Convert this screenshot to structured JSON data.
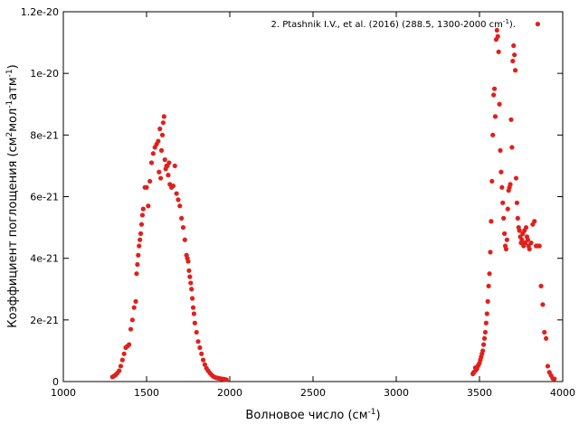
{
  "chart_data": {
    "type": "scatter",
    "xlabel": "Волновое число (см",
    "xlabel_sup": "-1",
    "xlabel_tail": ")",
    "ylabel_parts": [
      {
        "t": "Коэффициент поглощения (см"
      },
      {
        "t": "2",
        "sup": true
      },
      {
        "t": "мол"
      },
      {
        "t": "-1",
        "sup": true
      },
      {
        "t": "атм"
      },
      {
        "t": "-1",
        "sup": true
      },
      {
        "t": ")"
      }
    ],
    "legend_text": "2. Ptashnik I.V., et al. (2016) (288.5, 1300-2000 cm",
    "legend_sup": "-1",
    "legend_tail": ").",
    "legend_position": "top-right",
    "xlim": [
      1000,
      4000
    ],
    "ylim": [
      0,
      1.2e-20
    ],
    "xticks": [
      1000,
      1500,
      2000,
      2500,
      3000,
      3500,
      4000
    ],
    "xtick_labels": [
      "1000",
      "1500",
      "2000",
      "2500",
      "3000",
      "3500",
      "4000"
    ],
    "yticks": [
      0,
      2e-21,
      4e-21,
      6e-21,
      8e-21,
      1e-20,
      1.2e-20
    ],
    "ytick_labels": [
      "0",
      "2e-21",
      "4e-21",
      "6e-21",
      "8e-21",
      "1e-20",
      "1.2e-20"
    ],
    "grid": false,
    "marker_color": "#e0201b",
    "series": [
      {
        "x": [
          1295,
          1305,
          1315,
          1325,
          1335,
          1345,
          1355,
          1365,
          1375,
          1385,
          1395,
          1405,
          1415,
          1425,
          1435,
          1440,
          1445,
          1450,
          1455,
          1460,
          1465,
          1470,
          1475,
          1480,
          1490,
          1500,
          1510,
          1520,
          1530,
          1540,
          1550,
          1560,
          1570,
          1575,
          1580,
          1585,
          1590,
          1595,
          1600,
          1605,
          1610,
          1615,
          1620,
          1625,
          1630,
          1635,
          1640,
          1650,
          1660,
          1670,
          1680,
          1690,
          1700,
          1710,
          1720,
          1730,
          1740,
          1745,
          1750,
          1755,
          1760,
          1765,
          1770,
          1775,
          1780,
          1785,
          1790,
          1800,
          1810,
          1820,
          1830,
          1840,
          1850,
          1860,
          1870,
          1880,
          1890,
          1900,
          1910,
          1920,
          1930,
          1940,
          1950,
          1960,
          1970,
          1980,
          3460,
          3465,
          3470,
          3475,
          3480,
          3485,
          3490,
          3495,
          3500,
          3505,
          3510,
          3515,
          3520,
          3525,
          3530,
          3535,
          3540,
          3545,
          3550,
          3555,
          3560,
          3565,
          3570,
          3575,
          3580,
          3585,
          3590,
          3595,
          3600,
          3605,
          3610,
          3615,
          3620,
          3625,
          3630,
          3635,
          3640,
          3645,
          3650,
          3655,
          3660,
          3665,
          3670,
          3675,
          3680,
          3685,
          3690,
          3695,
          3700,
          3705,
          3710,
          3715,
          3720,
          3725,
          3730,
          3735,
          3740,
          3745,
          3750,
          3755,
          3760,
          3765,
          3770,
          3775,
          3780,
          3785,
          3790,
          3795,
          3800,
          3810,
          3820,
          3830,
          3840,
          3850,
          3860,
          3870,
          3880,
          3890,
          3900,
          3910,
          3920,
          3930,
          3940,
          3950
        ],
        "y": [
          1.5e-22,
          1.8e-22,
          2.2e-22,
          2.8e-22,
          3.5e-22,
          5e-22,
          7e-22,
          9e-22,
          1.1e-21,
          1.15e-21,
          1.2e-21,
          1.7e-21,
          2e-21,
          2.4e-21,
          2.6e-21,
          3.5e-21,
          3.8e-21,
          4.1e-21,
          4.4e-21,
          4.6e-21,
          4.8e-21,
          5.1e-21,
          5.4e-21,
          5.6e-21,
          6.3e-21,
          6.3e-21,
          5.7e-21,
          6.5e-21,
          7.1e-21,
          7.4e-21,
          7.6e-21,
          7.7e-21,
          7.8e-21,
          6.8e-21,
          8.2e-21,
          6.6e-21,
          7.5e-21,
          8e-21,
          8.4e-21,
          8.6e-21,
          7.2e-21,
          6.9e-21,
          7e-21,
          7e-21,
          6.7e-21,
          7.1e-21,
          6.4e-21,
          6.3e-21,
          6.35e-21,
          7e-21,
          6.1e-21,
          5.9e-21,
          5.7e-21,
          5.3e-21,
          5e-21,
          4.6e-21,
          4.1e-21,
          4e-21,
          3.9e-21,
          3.6e-21,
          3.4e-21,
          3.2e-21,
          3e-21,
          2.7e-21,
          2.4e-21,
          2.2e-21,
          1.9e-21,
          1.6e-21,
          1.3e-21,
          1.1e-21,
          9e-22,
          7e-22,
          5.5e-22,
          4.3e-22,
          3.5e-22,
          2.8e-22,
          2.2e-22,
          1.7e-22,
          1.4e-22,
          1.2e-22,
          1.1e-22,
          1e-22,
          9e-23,
          8e-23,
          7e-23,
          6e-23,
          2.5e-22,
          3e-22,
          3.2e-22,
          4.5e-22,
          3.8e-22,
          4.2e-22,
          5e-22,
          5.5e-22,
          6e-22,
          7e-22,
          8e-22,
          9e-22,
          1e-21,
          1.2e-21,
          1.4e-21,
          1.6e-21,
          1.9e-21,
          2.2e-21,
          2.6e-21,
          3.1e-21,
          3.5e-21,
          4.2e-21,
          5.2e-21,
          6.5e-21,
          8e-21,
          9.3e-21,
          9.5e-21,
          8.6e-21,
          1.11e-20,
          1.14e-20,
          1.12e-20,
          1.07e-20,
          9e-21,
          7.5e-21,
          6.8e-21,
          6.3e-21,
          5.8e-21,
          5.3e-21,
          4.8e-21,
          4.4e-21,
          4.3e-21,
          4.6e-21,
          5.6e-21,
          6.2e-21,
          6.3e-21,
          6.4e-21,
          8.5e-21,
          7.6e-21,
          1.04e-20,
          1.09e-20,
          1.06e-20,
          1.01e-20,
          6.6e-21,
          5.8e-21,
          5.3e-21,
          5e-21,
          4.9e-21,
          4.7e-21,
          4.5e-21,
          4.6e-21,
          4.8e-21,
          4.4e-21,
          4.9e-21,
          4.5e-21,
          5e-21,
          4.7e-21,
          4.6e-21,
          4.4e-21,
          4.3e-21,
          4.5e-21,
          5.1e-21,
          5.2e-21,
          4.4e-21,
          4.4e-21,
          4.4e-21,
          3.1e-21,
          2.5e-21,
          1.6e-21,
          1.4e-21,
          5e-22,
          3e-22,
          2e-22,
          1e-22,
          9e-23
        ]
      }
    ],
    "outlier": {
      "x": 3850,
      "y": 1.16e-20
    }
  }
}
